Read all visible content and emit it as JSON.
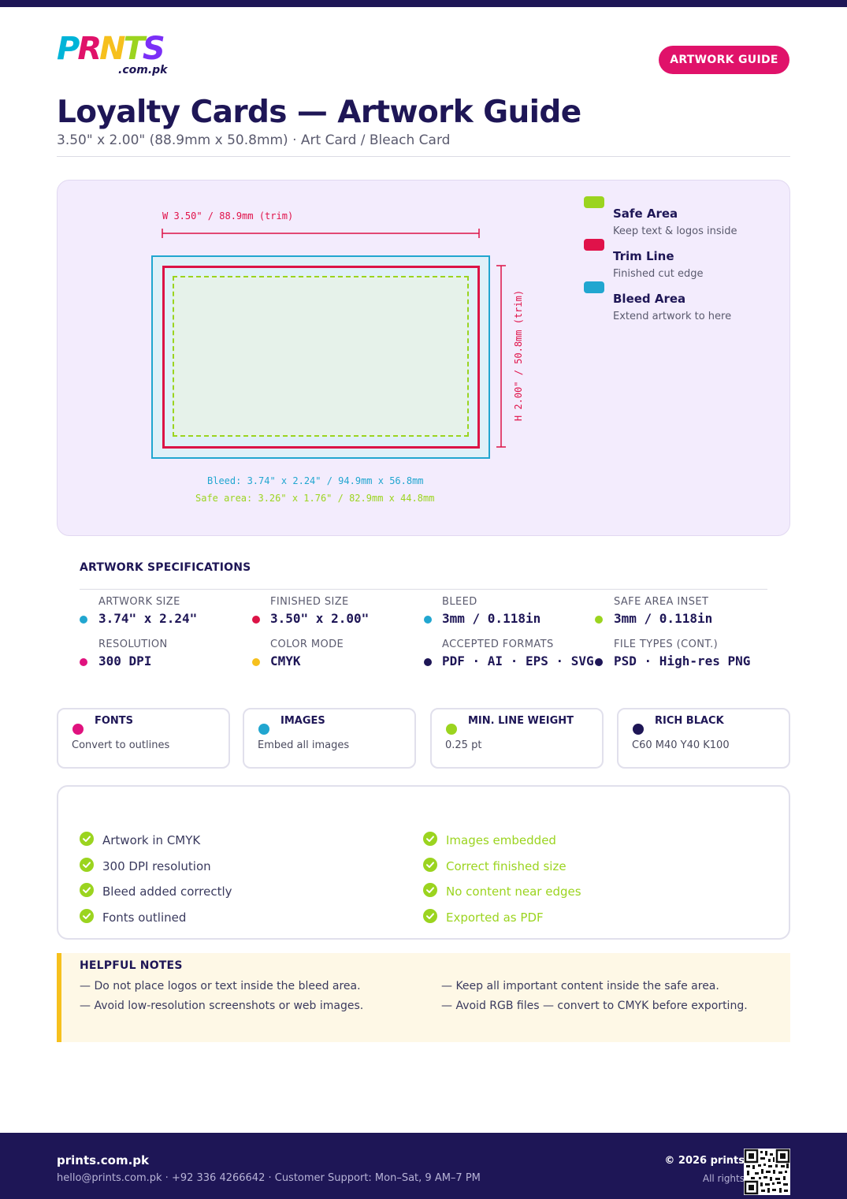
{
  "brand": {
    "logo_text": "PRNTS",
    "logo_sub": ".com.pk",
    "logo_colors": [
      "#00b4d8",
      "#e0126a",
      "#f6c01d",
      "#9bd41f",
      "#7b2ff7"
    ]
  },
  "header": {
    "badge": "ARTWORK GUIDE",
    "title": "Loyalty Cards — Artwork Guide",
    "subtitle": "3.50\" x 2.00\" (88.9mm x 50.8mm) · Art Card / Bleach Card"
  },
  "diagram": {
    "width_label": "W 3.50\" / 88.9mm (trim)",
    "height_label": "H 2.00\" / 50.8mm (trim)",
    "bleed_note": "Bleed: 3.74\" x 2.24\" / 94.9mm x 56.8mm",
    "safe_note": "Safe area: 3.26\" x 1.76\" / 82.9mm x 44.8mm",
    "legend": [
      {
        "title": "Safe Area",
        "desc": "Keep text & logos inside",
        "color": "#9bd41f"
      },
      {
        "title": "Trim Line",
        "desc": "Finished cut edge",
        "color": "#e0124a"
      },
      {
        "title": "Bleed Area",
        "desc": "Extend artwork to here",
        "color": "#21a6d0"
      }
    ]
  },
  "specs": {
    "heading": "ARTWORK SPECIFICATIONS",
    "items": [
      {
        "label": "ARTWORK SIZE",
        "value": "3.74\" x 2.24\"",
        "color": "#21a6d0"
      },
      {
        "label": "FINISHED SIZE",
        "value": "3.50\" x 2.00\"",
        "color": "#dc1346"
      },
      {
        "label": "BLEED",
        "value": "3mm / 0.118in",
        "color": "#21a6d0"
      },
      {
        "label": "SAFE AREA INSET",
        "value": "3mm / 0.118in",
        "color": "#9bd41f"
      },
      {
        "label": "RESOLUTION",
        "value": "300 DPI",
        "color": "#e0127e"
      },
      {
        "label": "COLOR MODE",
        "value": "CMYK",
        "color": "#f6c01d"
      },
      {
        "label": "ACCEPTED FORMATS",
        "value": "PDF · AI · EPS · SVG",
        "color": "#1e1656"
      },
      {
        "label": "FILE TYPES (CONT.)",
        "value": "PSD · High-res PNG",
        "color": "#1e1656"
      }
    ]
  },
  "cards": [
    {
      "title": "FONTS",
      "desc": "Convert to outlines",
      "color": "#e0127e"
    },
    {
      "title": "IMAGES",
      "desc": "Embed all images",
      "color": "#21a6d0"
    },
    {
      "title": "MIN. LINE WEIGHT",
      "desc": "0.25 pt",
      "color": "#9bd41f"
    },
    {
      "title": "RICH BLACK",
      "desc": "C60 M40 Y40 K100",
      "color": "#1e1656"
    }
  ],
  "checklist": {
    "left": [
      "Artwork in CMYK",
      "300 DPI resolution",
      "Bleed added correctly",
      "Fonts outlined"
    ],
    "right": [
      "Images embedded",
      "Correct finished size",
      "No content near edges",
      "Exported as PDF"
    ]
  },
  "notes": {
    "title": "HELPFUL NOTES",
    "items": [
      "— Do not place logos or text inside the bleed area.",
      "— Keep all important content inside the safe area.",
      "— Avoid low-resolution screenshots or web images.",
      "— Avoid RGB files — convert to CMYK before exporting."
    ]
  },
  "footer": {
    "brand": "prints.com.pk",
    "contact": "hello@prints.com.pk · +92 336 4266642 · Customer Support: Mon–Sat, 9 AM–7 PM",
    "copyright": "© 2026 prints",
    "rights": "All rights"
  }
}
